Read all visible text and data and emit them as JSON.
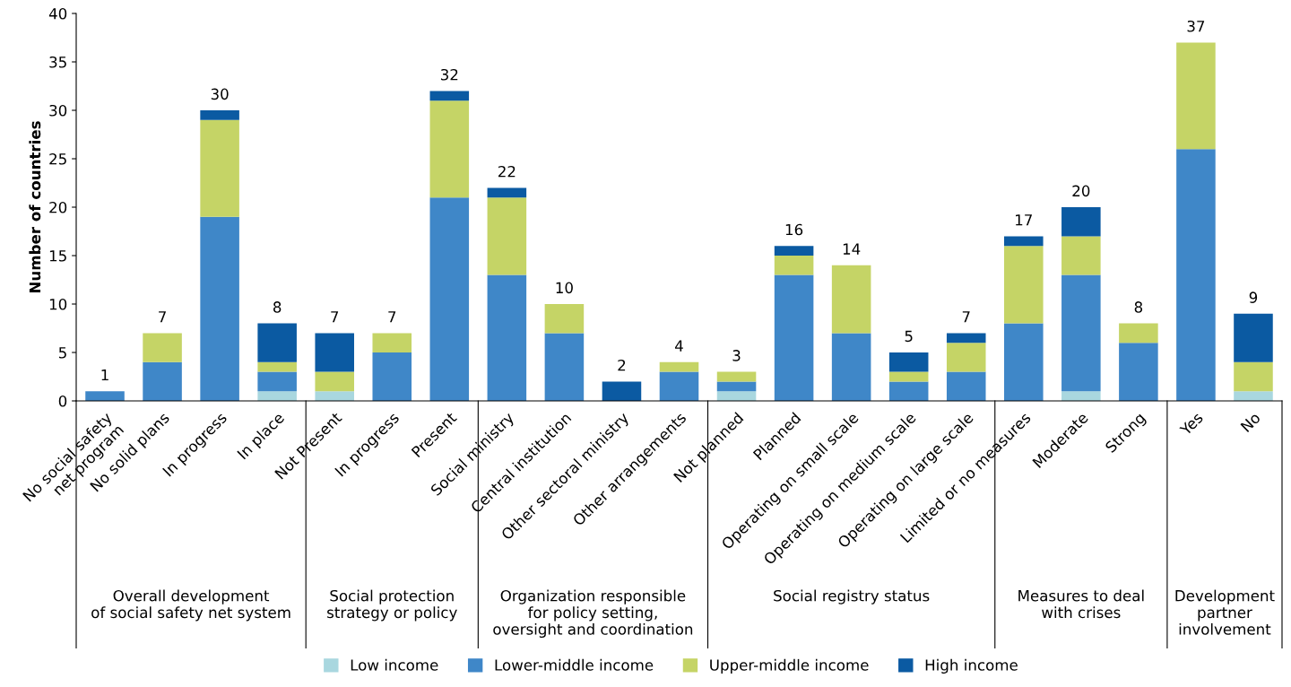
{
  "chart_data": {
    "type": "bar",
    "stacked": true,
    "ylabel": "Number of countries",
    "categories": [
      "No social safety\nnet program",
      "No solid plans",
      "In progress",
      "In place",
      "Not Present",
      "In progress",
      "Present",
      "Social ministry",
      "Central institution",
      "Other sectoral ministry",
      "Other arrangements",
      "Not planned",
      "Planned",
      "Operating on small scale",
      "Operating on medium scale",
      "Operating on large scale",
      "Limited or no measures",
      "Moderate",
      "Strong",
      "Yes",
      "No"
    ],
    "series": [
      {
        "name": "Low income",
        "color": "#a9d7df",
        "values": [
          0,
          0,
          0,
          1,
          1,
          0,
          0,
          0,
          0,
          0,
          0,
          1,
          0,
          0,
          0,
          0,
          0,
          1,
          0,
          0,
          1
        ]
      },
      {
        "name": "Lower-middle income",
        "color": "#3f87c8",
        "values": [
          1,
          4,
          19,
          2,
          0,
          5,
          21,
          13,
          7,
          0,
          3,
          1,
          13,
          7,
          2,
          3,
          8,
          12,
          6,
          26,
          0
        ]
      },
      {
        "name": "Upper-middle income",
        "color": "#c5d466",
        "values": [
          0,
          3,
          10,
          1,
          2,
          2,
          10,
          8,
          3,
          0,
          1,
          1,
          2,
          7,
          1,
          3,
          8,
          4,
          2,
          11,
          3
        ]
      },
      {
        "name": "High income",
        "color": "#0b5aa2",
        "values": [
          0,
          0,
          1,
          4,
          4,
          0,
          1,
          1,
          0,
          2,
          0,
          0,
          1,
          0,
          2,
          1,
          1,
          3,
          0,
          0,
          5
        ]
      }
    ],
    "totals": [
      "1",
      "7",
      "30",
      "8",
      "7",
      "7",
      "32",
      "22",
      "10",
      "2",
      "4",
      "3",
      "16",
      "14",
      "5",
      "7",
      "17",
      "20",
      "8",
      "37",
      "9"
    ],
    "annotations": [
      "Overall development\nof social safety net system",
      "Social protection\nstrategy or policy",
      "Organization responsible\nfor policy setting,\noversight and coordination",
      "Social registry status",
      "Measures to deal\nwith crises",
      "Development\npartner\ninvolvement"
    ],
    "ylim": [
      0,
      40
    ],
    "yticks": [
      0,
      5,
      10,
      15,
      20,
      25,
      30,
      35,
      40
    ],
    "grid": false,
    "legend": "bottom"
  }
}
